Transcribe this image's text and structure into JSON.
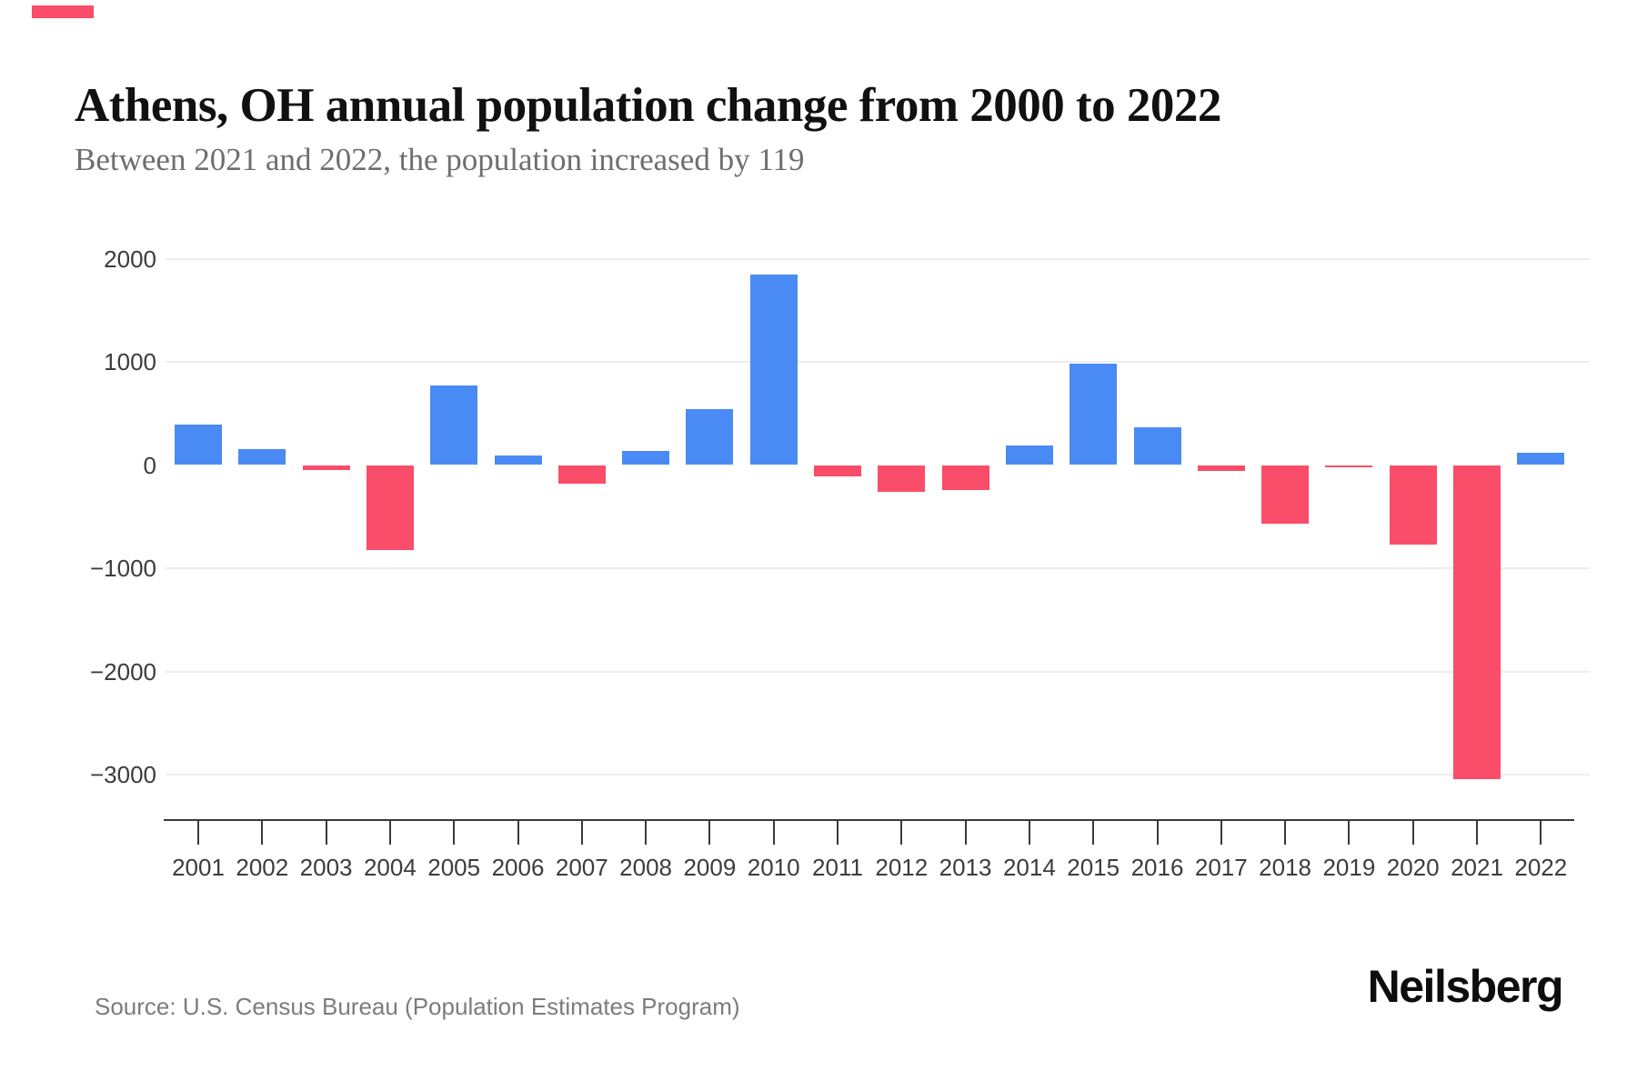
{
  "accent": {
    "color": "#f94d6a"
  },
  "header": {
    "title": "Athens, OH annual population change from 2000 to 2022",
    "subtitle": "Between 2021 and 2022, the population increased by 119"
  },
  "footer": {
    "source": "Source: U.S. Census Bureau (Population Estimates Program)",
    "brand": "Neilsberg"
  },
  "chart_data": {
    "type": "bar",
    "title": "Athens, OH annual population change from 2000 to 2022",
    "subtitle": "Between 2021 and 2022, the population increased by 119",
    "xlabel": "",
    "ylabel": "",
    "categories": [
      "2001",
      "2002",
      "2003",
      "2004",
      "2005",
      "2006",
      "2007",
      "2008",
      "2009",
      "2010",
      "2011",
      "2012",
      "2013",
      "2014",
      "2015",
      "2016",
      "2017",
      "2018",
      "2019",
      "2020",
      "2021",
      "2022"
    ],
    "values": [
      390,
      155,
      -45,
      -820,
      770,
      90,
      -185,
      140,
      545,
      1850,
      -110,
      -260,
      -240,
      190,
      985,
      370,
      -55,
      -565,
      -12,
      -770,
      -3040,
      119
    ],
    "yticks": [
      2000,
      1000,
      0,
      -1000,
      -2000,
      -3000
    ],
    "ylim": [
      -3200,
      2200
    ],
    "grid": "horizontal-only",
    "legend": "none",
    "colors": {
      "positive": "#4a8af4",
      "negative": "#fa4d69"
    }
  }
}
